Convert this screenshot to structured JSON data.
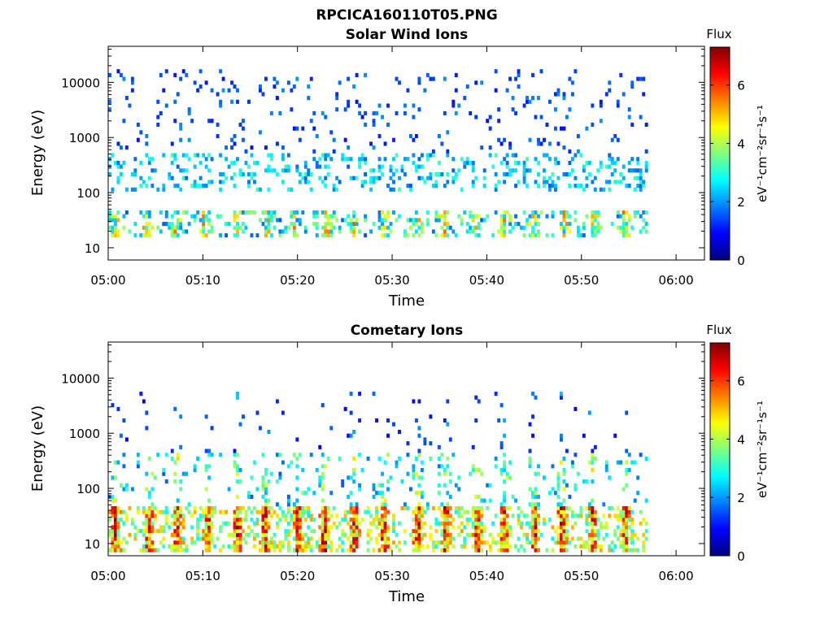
{
  "figure_title": "RPCICA160110T05.PNG",
  "colors": {
    "colormap": [
      "#00007f",
      "#0000ff",
      "#007fff",
      "#00ffff",
      "#7fff7f",
      "#ffff00",
      "#ff7f00",
      "#ff0000",
      "#7f0000"
    ]
  },
  "chart_data": [
    {
      "type": "heatmap",
      "title": "Solar Wind Ions",
      "xlabel": "Time",
      "ylabel": "Energy (eV)",
      "y_scale": "log",
      "xlim": [
        "05:00",
        "06:03"
      ],
      "ylim": [
        6,
        45000
      ],
      "x_ticks": [
        "05:00",
        "05:10",
        "05:20",
        "05:30",
        "05:40",
        "05:50",
        "06:00"
      ],
      "y_ticks": [
        "10",
        "100",
        "1000",
        "10000"
      ],
      "colorbar": {
        "label": "Flux",
        "unit": "eV⁻¹cm⁻²sr⁻¹s⁻¹",
        "range": [
          0,
          7.3
        ],
        "ticks": [
          "0",
          "2",
          "4",
          "6"
        ]
      },
      "data_extent_x": [
        "05:00",
        "05:57"
      ],
      "grid": false,
      "seed": 11,
      "bands": [
        {
          "e_lo": 15,
          "e_hi": 45,
          "density": 0.55,
          "v_lo": 2.0,
          "v_hi": 5.4,
          "peaks": true
        },
        {
          "e_lo": 100,
          "e_hi": 500,
          "density": 0.22,
          "v_lo": 1.6,
          "v_hi": 3.3,
          "peaks": false
        },
        {
          "e_lo": 500,
          "e_hi": 15000,
          "density": 0.06,
          "v_lo": 1.0,
          "v_hi": 2.0,
          "peaks": false
        }
      ]
    },
    {
      "type": "heatmap",
      "title": "Cometary Ions",
      "xlabel": "Time",
      "ylabel": "Energy (eV)",
      "y_scale": "log",
      "xlim": [
        "05:00",
        "06:03"
      ],
      "ylim": [
        6,
        45000
      ],
      "x_ticks": [
        "05:00",
        "05:10",
        "05:20",
        "05:30",
        "05:40",
        "05:50",
        "06:00"
      ],
      "y_ticks": [
        "10",
        "100",
        "1000",
        "10000"
      ],
      "colorbar": {
        "label": "Flux",
        "unit": "eV⁻¹cm⁻²sr⁻¹s⁻¹",
        "range": [
          0,
          7.3
        ],
        "ticks": [
          "0",
          "2",
          "4",
          "6"
        ]
      },
      "data_extent_x": [
        "05:00",
        "05:57"
      ],
      "grid": false,
      "seed": 29,
      "bands": [
        {
          "e_lo": 7,
          "e_hi": 45,
          "density": 0.75,
          "v_lo": 3.5,
          "v_hi": 7.0,
          "peaks": true
        },
        {
          "e_lo": 45,
          "e_hi": 400,
          "density": 0.2,
          "v_lo": 2.0,
          "v_hi": 4.5,
          "peaks": true
        },
        {
          "e_lo": 400,
          "e_hi": 5000,
          "density": 0.05,
          "v_lo": 1.0,
          "v_hi": 2.2,
          "peaks": true
        }
      ]
    }
  ]
}
